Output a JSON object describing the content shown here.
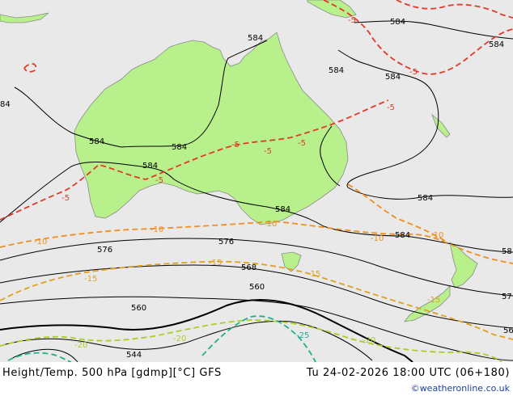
{
  "footer": {
    "title": "Height/Temp. 500 hPa [gdmp][°C] GFS",
    "valid_time": "Tu 24-02-2026 18:00 UTC (06+180)",
    "credit": "©weatheronline.co.uk"
  },
  "colors": {
    "sea": "#e9e9e9",
    "land": "#b8f08c",
    "coast": "#8a8a8a",
    "height_contour": "#000000",
    "temp_minus5": "#e03a2a",
    "temp_minus10": "#ee9020",
    "temp_minus15": "#e0a020",
    "temp_minus20": "#a8d020",
    "temp_minus25": "#20b090"
  },
  "height_labels": {
    "h584_a": "584",
    "h584_b": "584",
    "h584_c": "584",
    "h584_d": "584",
    "h584_e": "584",
    "h584_f": "584",
    "h584_g": "584",
    "h584_h": "584",
    "h584_i": "584",
    "h584_j": "584",
    "h584_k": "84",
    "h584_l": "58",
    "h576_a": "576",
    "h576_b": "576",
    "h576_c": "57",
    "h568": "568",
    "h560_a": "560",
    "h560_b": "560",
    "h544": "544",
    "h56": "56"
  },
  "temp_labels": {
    "t5_a": "-5",
    "t5_b": "-5",
    "t5_c": "-5",
    "t5_d": "-5",
    "t5_e": "-5",
    "t5_f": "-5",
    "t5_g": "-5",
    "t5_h": "-5",
    "t10_a": "-10",
    "t10_b": "-10",
    "t10_c": "-10",
    "t10_d": "-10",
    "t10_e": "-10",
    "t15_a": "-15",
    "t15_b": "-15",
    "t15_c": "-15",
    "t15_d": "-15",
    "t20_a": "-20",
    "t20_b": "-20",
    "t20_c": "-20",
    "t25": "-25"
  }
}
